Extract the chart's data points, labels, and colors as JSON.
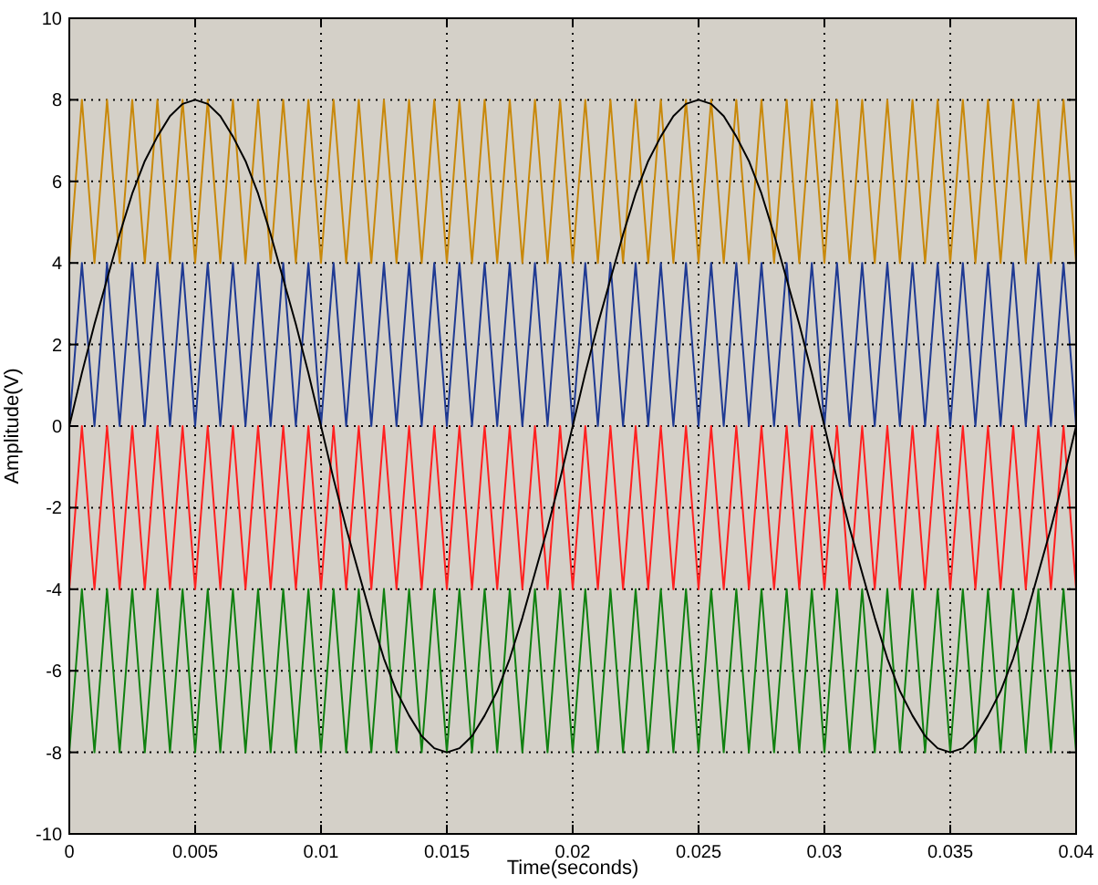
{
  "chart_data": {
    "type": "line",
    "xlabel": "Time(seconds)",
    "ylabel": "Amplitude(V)",
    "x": [
      0,
      0.0005,
      0.001,
      0.0015,
      0.002,
      0.0025,
      0.003,
      0.0035,
      0.004,
      0.0045,
      0.005,
      0.0055,
      0.006,
      0.0065,
      0.007,
      0.0075,
      0.008,
      0.0085,
      0.009,
      0.0095,
      0.01,
      0.0105,
      0.011,
      0.0115,
      0.012,
      0.0125,
      0.013,
      0.0135,
      0.014,
      0.0145,
      0.015,
      0.0155,
      0.016,
      0.0165,
      0.017,
      0.0175,
      0.018,
      0.0185,
      0.019,
      0.0195,
      0.02,
      0.0205,
      0.021,
      0.0215,
      0.022,
      0.0225,
      0.023,
      0.0235,
      0.024,
      0.0245,
      0.025,
      0.0255,
      0.026,
      0.0265,
      0.027,
      0.0275,
      0.028,
      0.0285,
      0.029,
      0.0295,
      0.03,
      0.0305,
      0.031,
      0.0315,
      0.032,
      0.0325,
      0.033,
      0.0335,
      0.034,
      0.0345,
      0.035,
      0.0355,
      0.036,
      0.0365,
      0.037,
      0.0375,
      0.038,
      0.0385,
      0.039,
      0.0395,
      0.04
    ],
    "series": [
      {
        "color": "#c8880a",
        "values": [
          4,
          8,
          4,
          8,
          4,
          8,
          4,
          8,
          4,
          8,
          4,
          8,
          4,
          8,
          4,
          8,
          4,
          8,
          4,
          8,
          4,
          8,
          4,
          8,
          4,
          8,
          4,
          8,
          4,
          8,
          4,
          8,
          4,
          8,
          4,
          8,
          4,
          8,
          4,
          8,
          4,
          8,
          4,
          8,
          4,
          8,
          4,
          8,
          4,
          8,
          4,
          8,
          4,
          8,
          4,
          8,
          4,
          8,
          4,
          8,
          4,
          8,
          4,
          8,
          4,
          8,
          4,
          8,
          4,
          8,
          4,
          8,
          4,
          8,
          4,
          8,
          4,
          8,
          4,
          8,
          4
        ]
      },
      {
        "color": "#1f3a93",
        "values": [
          0,
          4,
          0,
          4,
          0,
          4,
          0,
          4,
          0,
          4,
          0,
          4,
          0,
          4,
          0,
          4,
          0,
          4,
          0,
          4,
          0,
          4,
          0,
          4,
          0,
          4,
          0,
          4,
          0,
          4,
          0,
          4,
          0,
          4,
          0,
          4,
          0,
          4,
          0,
          4,
          0,
          4,
          0,
          4,
          0,
          4,
          0,
          4,
          0,
          4,
          0,
          4,
          0,
          4,
          0,
          4,
          0,
          4,
          0,
          4,
          0,
          4,
          0,
          4,
          0,
          4,
          0,
          4,
          0,
          4,
          0,
          4,
          0,
          4,
          0,
          4,
          0,
          4,
          0,
          4,
          0
        ]
      },
      {
        "color": "#ff2020",
        "values": [
          -4,
          0,
          -4,
          0,
          -4,
          0,
          -4,
          0,
          -4,
          0,
          -4,
          0,
          -4,
          0,
          -4,
          0,
          -4,
          0,
          -4,
          0,
          -4,
          0,
          -4,
          0,
          -4,
          0,
          -4,
          0,
          -4,
          0,
          -4,
          0,
          -4,
          0,
          -4,
          0,
          -4,
          0,
          -4,
          0,
          -4,
          0,
          -4,
          0,
          -4,
          0,
          -4,
          0,
          -4,
          0,
          -4,
          0,
          -4,
          0,
          -4,
          0,
          -4,
          0,
          -4,
          0,
          -4,
          0,
          -4,
          0,
          -4,
          0,
          -4,
          0,
          -4,
          0,
          -4,
          0,
          -4,
          0,
          -4,
          0,
          -4,
          0,
          -4,
          0,
          -4
        ]
      },
      {
        "color": "#108010",
        "values": [
          -8,
          -4,
          -8,
          -4,
          -8,
          -4,
          -8,
          -4,
          -8,
          -4,
          -8,
          -4,
          -8,
          -4,
          -8,
          -4,
          -8,
          -4,
          -8,
          -4,
          -8,
          -4,
          -8,
          -4,
          -8,
          -4,
          -8,
          -4,
          -8,
          -4,
          -8,
          -4,
          -8,
          -4,
          -8,
          -4,
          -8,
          -4,
          -8,
          -4,
          -8,
          -4,
          -8,
          -4,
          -8,
          -4,
          -8,
          -4,
          -8,
          -4,
          -8,
          -4,
          -8,
          -4,
          -8,
          -4,
          -8,
          -4,
          -8,
          -4,
          -8,
          -4,
          -8,
          -4,
          -8,
          -4,
          -8,
          -4,
          -8,
          -4,
          -8,
          -4,
          -8,
          -4,
          -8,
          -4,
          -8,
          -4,
          -8,
          -4,
          -8
        ]
      },
      {
        "color": "#000000",
        "values": [
          0,
          1.3,
          2.5,
          3.6,
          4.7,
          5.7,
          6.5,
          7.1,
          7.6,
          7.9,
          8,
          7.9,
          7.6,
          7.1,
          6.5,
          5.7,
          4.7,
          3.6,
          2.5,
          1.3,
          0,
          -1.3,
          -2.5,
          -3.6,
          -4.7,
          -5.7,
          -6.5,
          -7.1,
          -7.6,
          -7.9,
          -8,
          -7.9,
          -7.6,
          -7.1,
          -6.5,
          -5.7,
          -4.7,
          -3.6,
          -2.5,
          -1.3,
          0,
          1.3,
          2.5,
          3.6,
          4.7,
          5.7,
          6.5,
          7.1,
          7.6,
          7.9,
          8,
          7.9,
          7.6,
          7.1,
          6.5,
          5.7,
          4.7,
          3.6,
          2.5,
          1.3,
          0,
          -1.3,
          -2.5,
          -3.6,
          -4.7,
          -5.7,
          -6.5,
          -7.1,
          -7.6,
          -7.9,
          -8,
          -7.9,
          -7.6,
          -7.1,
          -6.5,
          -5.7,
          -4.7,
          -3.6,
          -2.5,
          -1.3,
          0
        ]
      }
    ],
    "xlim": [
      0,
      0.04
    ],
    "xticks": [
      0,
      0.005,
      0.01,
      0.015,
      0.02,
      0.025,
      0.03,
      0.035,
      0.04
    ],
    "ylim": [
      -10,
      10
    ],
    "yticks": [
      -10,
      -8,
      -6,
      -4,
      -2,
      0,
      2,
      4,
      6,
      8,
      10
    ],
    "grid": true,
    "line_style": "solid",
    "marker": "none"
  }
}
